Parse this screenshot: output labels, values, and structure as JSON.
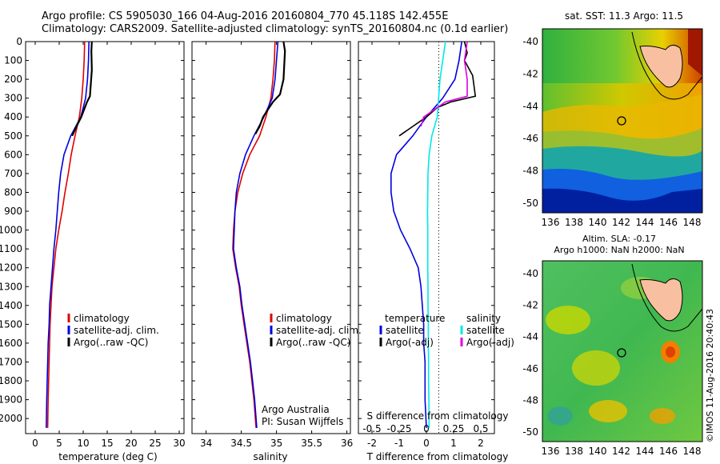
{
  "header": {
    "line1": "Argo profile: CS 5905030_166 04-Aug-2016 20160804_770 45.118S 142.455E",
    "line2": "Climatology: CARS2009. Satellite-adjusted climatology: synTS_20160804.nc (0.1d earlier)"
  },
  "panels": {
    "temperature": {
      "xlabel": "temperature (deg C)",
      "xticks": [
        "0",
        "5",
        "10",
        "15",
        "20",
        "25",
        "30"
      ],
      "legend": [
        "climatology",
        "satellite-adj. clim.",
        "Argo(..raw -QC)"
      ]
    },
    "salinity": {
      "xlabel": "salinity",
      "xticks": [
        "34",
        "34.5",
        "35",
        "35.5",
        "36"
      ],
      "legend": [
        "climatology",
        "satellite-adj. clim.",
        "Argo(..raw -QC)"
      ],
      "note1": "Argo Australia",
      "note2": "PI: Susan Wijffels"
    },
    "difference": {
      "xlabel": "T difference from climatology",
      "xticks": [
        "-2",
        "-1",
        "0",
        "1",
        "2"
      ],
      "sticks_label": "S difference from climatology",
      "sticks": [
        "-0.5",
        "-0.25",
        "0",
        "0.25",
        "0.5"
      ],
      "legend_t_title": "temperature",
      "legend_s_title": "salinity",
      "legend": [
        "satellite",
        "Argo(-adj)",
        "satellite",
        "Argo(-adj)"
      ]
    }
  },
  "yticks": [
    "0",
    "100",
    "200",
    "300",
    "400",
    "500",
    "600",
    "700",
    "800",
    "900",
    "1000",
    "1100",
    "1200",
    "1300",
    "1400",
    "1500",
    "1600",
    "1700",
    "1800",
    "1900",
    "2000"
  ],
  "maps": {
    "sst_title": "sat. SST: 11.3 Argo: 11.5",
    "sla_title1": "Altim. SLA: -0.17",
    "sla_title2": "Argo h1000: NaN h2000: NaN",
    "lat_ticks": [
      "-40",
      "-42",
      "-44",
      "-46",
      "-48",
      "-50"
    ],
    "lon_ticks": [
      "136",
      "138",
      "140",
      "142",
      "144",
      "146",
      "148"
    ],
    "stamp": "©IMOS 11-Aug-2016 20:40:43"
  },
  "colors": {
    "climatology": "#e00000",
    "satellite": "#0000e0",
    "argo": "#000000",
    "sal_sat": "#00e8e8",
    "sal_argo": "#e000e0"
  },
  "chart_data": [
    {
      "type": "line",
      "title": "",
      "xlabel": "temperature (deg C)",
      "ylabel": "",
      "xlim": [
        -2,
        31
      ],
      "ylim": [
        2080,
        0
      ],
      "series": [
        {
          "name": "climatology",
          "x": [
            10.3,
            10.2,
            10.0,
            9.7,
            9.2,
            8.3,
            7.5,
            6.9,
            6.2,
            5.6,
            4.9,
            4.3,
            3.9,
            3.5,
            3.3,
            3.1,
            3.0,
            2.9,
            2.8,
            2.7,
            2.6
          ],
          "y": [
            0,
            100,
            200,
            300,
            400,
            500,
            600,
            700,
            800,
            900,
            1000,
            1100,
            1200,
            1300,
            1400,
            1500,
            1600,
            1700,
            1800,
            1900,
            2050
          ]
        },
        {
          "name": "satellite-adj. clim.",
          "x": [
            11.2,
            11.1,
            10.9,
            10.5,
            9.5,
            7.4,
            6.0,
            5.3,
            4.9,
            4.6,
            4.3,
            3.9,
            3.6,
            3.3,
            3.0,
            2.9,
            2.7,
            2.6,
            2.5,
            2.4,
            2.3
          ],
          "y": [
            0,
            100,
            200,
            300,
            400,
            500,
            600,
            700,
            800,
            900,
            1000,
            1100,
            1200,
            1300,
            1400,
            1500,
            1600,
            1700,
            1800,
            1900,
            2050
          ]
        },
        {
          "name": "Argo(..raw -QC)",
          "x": [
            11.8,
            11.7,
            11.8,
            11.4,
            10.8,
            9.6,
            8.6,
            7.7
          ],
          "y": [
            0,
            50,
            150,
            290,
            320,
            400,
            450,
            500
          ]
        }
      ]
    },
    {
      "type": "line",
      "title": "",
      "xlabel": "salinity",
      "ylabel": "",
      "xlim": [
        33.8,
        36.05
      ],
      "ylim": [
        2080,
        0
      ],
      "series": [
        {
          "name": "climatology",
          "x": [
            34.98,
            34.97,
            34.95,
            34.92,
            34.85,
            34.76,
            34.62,
            34.52,
            34.45,
            34.41,
            34.39,
            34.38,
            34.42,
            34.47,
            34.5,
            34.54,
            34.58,
            34.62,
            34.65,
            34.68,
            34.71
          ],
          "y": [
            0,
            100,
            200,
            300,
            400,
            500,
            600,
            700,
            800,
            900,
            1000,
            1100,
            1200,
            1300,
            1400,
            1500,
            1600,
            1700,
            1800,
            1900,
            2050
          ]
        },
        {
          "name": "satellite-adj. clim.",
          "x": [
            35.02,
            35.0,
            34.98,
            34.94,
            34.82,
            34.68,
            34.56,
            34.48,
            34.43,
            34.41,
            34.4,
            34.39,
            34.43,
            34.48,
            34.51,
            34.55,
            34.59,
            34.63,
            34.66,
            34.69,
            34.72
          ],
          "y": [
            0,
            100,
            200,
            300,
            400,
            500,
            600,
            700,
            800,
            900,
            1000,
            1100,
            1200,
            1300,
            1400,
            1500,
            1600,
            1700,
            1800,
            1900,
            2050
          ]
        },
        {
          "name": "Argo(..raw -QC)",
          "x": [
            35.1,
            35.12,
            35.1,
            35.05,
            34.95,
            34.88,
            34.81,
            34.76,
            34.7
          ],
          "y": [
            0,
            50,
            200,
            280,
            320,
            360,
            400,
            450,
            490
          ]
        }
      ]
    },
    {
      "type": "line",
      "title": "",
      "xlabel": "T difference from climatology",
      "ylabel": "",
      "xlim": [
        -2.5,
        2.5
      ],
      "ylim": [
        2080,
        0
      ],
      "series": [
        {
          "name": "satellite",
          "x": [
            1.3,
            1.2,
            1.05,
            0.6,
            0.0,
            -0.5,
            -1.1,
            -1.3,
            -1.3,
            -1.2,
            -0.95,
            -0.6,
            -0.3,
            -0.2,
            -0.15,
            -0.1,
            -0.1,
            -0.05,
            -0.05,
            -0.05,
            0.0
          ],
          "y": [
            0,
            100,
            200,
            300,
            400,
            500,
            600,
            700,
            800,
            900,
            1000,
            1100,
            1200,
            1300,
            1400,
            1500,
            1600,
            1700,
            1800,
            1900,
            2050
          ]
        },
        {
          "name": "Argo(-adj)",
          "x": [
            1.4,
            1.5,
            1.4,
            1.7,
            1.8,
            0.9,
            0.4,
            0.0,
            -0.5,
            -1.0
          ],
          "y": [
            0,
            60,
            100,
            180,
            290,
            320,
            350,
            400,
            450,
            500
          ]
        },
        {
          "name": "satellite",
          "x": [
            0.7,
            0.6,
            0.5,
            0.45,
            0.4,
            0.2,
            0.1,
            0.06,
            0.05,
            0.04,
            0.05,
            0.05,
            0.05,
            0.06,
            0.06,
            0.07,
            0.07,
            0.08,
            0.08,
            0.09,
            0.1
          ],
          "y": [
            0,
            100,
            200,
            300,
            400,
            500,
            600,
            700,
            800,
            900,
            1000,
            1100,
            1200,
            1300,
            1400,
            1500,
            1600,
            1700,
            1800,
            1900,
            2050
          ]
        },
        {
          "name": "Argo(-adj)",
          "x": [
            1.5,
            1.4,
            1.5,
            1.5,
            0.7,
            0.3,
            -0.1,
            -0.2
          ],
          "y": [
            0,
            100,
            200,
            290,
            320,
            360,
            400,
            450
          ]
        }
      ]
    }
  ]
}
